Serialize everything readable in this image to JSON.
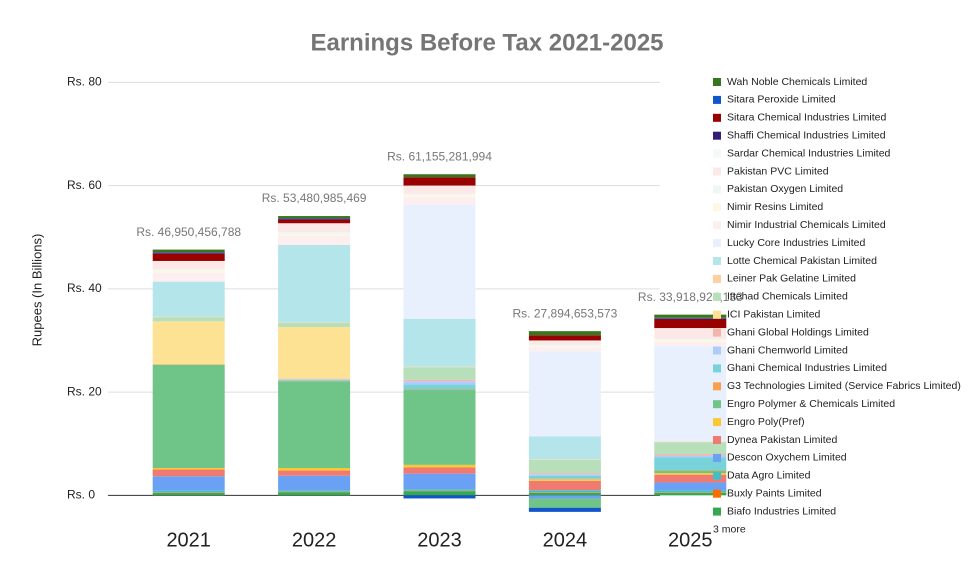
{
  "chart_data": {
    "type": "stacked_bar",
    "title": "Earnings Before Tax 2021-2025",
    "y_label": "Rupees (In Billions)",
    "categories": [
      "2021",
      "2022",
      "2023",
      "2024",
      "2025"
    ],
    "ylim": [
      -4,
      82
    ],
    "yticks": [
      {
        "value": 0,
        "label": "Rs. 0"
      },
      {
        "value": 20,
        "label": "Rs. 20"
      },
      {
        "value": 40,
        "label": "Rs. 40"
      },
      {
        "value": 60,
        "label": "Rs. 60"
      },
      {
        "value": 80,
        "label": "Rs. 80"
      }
    ],
    "grid": true,
    "legend_position": "right",
    "legend_more": "3 more",
    "totals": [
      {
        "value": 46.950456788,
        "label": "Rs.  46,950,456,788"
      },
      {
        "value": 53.480985469,
        "label": "Rs.  53,480,985,469"
      },
      {
        "value": 61.155281994,
        "label": "Rs.  61,155,281,994"
      },
      {
        "value": 27.894653573,
        "label": "Rs.  27,894,653,573"
      },
      {
        "value": 33.918924133,
        "label": "Rs.  33,918,924,133"
      }
    ],
    "series": [
      {
        "name": "Biafo Industries Limited",
        "color": "#34a853",
        "values": [
          0.5,
          0.6,
          0.8,
          0.5,
          0.5
        ]
      },
      {
        "name": "Buxly Paints Limited",
        "color": "#ff6d01",
        "values": [
          0.1,
          0.1,
          0.1,
          0.1,
          0.1
        ]
      },
      {
        "name": "Data Agro Limited",
        "color": "#46bdc6",
        "values": [
          0.3,
          0.3,
          0.3,
          0.4,
          0.4
        ]
      },
      {
        "name": "Descon Oxychem Limited",
        "color": "#6aa1f4",
        "values": [
          2.8,
          2.8,
          3.0,
          -0.6,
          1.5
        ]
      },
      {
        "name": "Dynea Pakistan Limited",
        "color": "#ee7a72",
        "values": [
          1.3,
          1.0,
          1.2,
          1.8,
          1.5
        ]
      },
      {
        "name": "Engro Poly(Pref)",
        "color": "#fbc834",
        "values": [
          0.3,
          0.5,
          0.5,
          0.3,
          0.3
        ]
      },
      {
        "name": "Engro Polymer & Chemicals Limited",
        "color": "#6fc487",
        "values": [
          20,
          16.8,
          14.5,
          -1.8,
          0.5
        ]
      },
      {
        "name": "G3 Technologies Limited  (Service Fabrics Limited)",
        "color": "#f9a04f",
        "values": [
          0.1,
          0.1,
          0.1,
          0.1,
          0.1
        ]
      },
      {
        "name": "Ghani Chemical Industries Limited",
        "color": "#78d2d9",
        "values": [
          0,
          0.2,
          1.0,
          0.6,
          2.5
        ]
      },
      {
        "name": "Ghani Chemworld Limited",
        "color": "#aecbfa",
        "values": [
          0,
          0.1,
          0.6,
          0.3,
          0.3
        ]
      },
      {
        "name": "Ghani Global Holdings Limited",
        "color": "#f4b4ae",
        "values": [
          0,
          0.1,
          0.3,
          0.2,
          0.3
        ]
      },
      {
        "name": "ICI Pakistan Limited",
        "color": "#fde293",
        "values": [
          8.3,
          10,
          0,
          0,
          0
        ]
      },
      {
        "name": "Ittehad Chemicals Limited",
        "color": "#b7dfb9",
        "values": [
          0.8,
          0.8,
          2.4,
          2.6,
          2.3
        ]
      },
      {
        "name": "Leiner Pak Gelatine Limited",
        "color": "#fcd0a1",
        "values": [
          0.1,
          0.1,
          0.1,
          0.1,
          0.1
        ]
      },
      {
        "name": "Lotte Chemical Pakistan Limited",
        "color": "#b3e5ea",
        "values": [
          6.8,
          15,
          9.3,
          4.4,
          0
        ]
      },
      {
        "name": "Lucky Core Industries Limited",
        "color": "#e8f0fe",
        "values": [
          0,
          0,
          22.1,
          16.5,
          18.5
        ]
      },
      {
        "name": "Nimir Industrial Chemicals Limited",
        "color": "#fdeef0",
        "values": [
          1.8,
          1.8,
          1.5,
          0.8,
          0.8
        ]
      },
      {
        "name": "Nimir Resins Limited",
        "color": "#fef8e3",
        "values": [
          0.3,
          0.3,
          0.3,
          0.2,
          0.3
        ]
      },
      {
        "name": "Pakistan Oxygen Limited",
        "color": "#eef8f3",
        "values": [
          0.3,
          0.4,
          0.3,
          0.3,
          0.3
        ]
      },
      {
        "name": "Pakistan PVC Limited",
        "color": "#fce8e6",
        "values": [
          1.5,
          1.6,
          1.5,
          0.7,
          2.0
        ]
      },
      {
        "name": "Sardar Chemical Industries Limited",
        "color": "#f3f8f8",
        "values": [
          0.1,
          0.1,
          0.1,
          0.1,
          0.1
        ]
      },
      {
        "name": "Shaffi Chemical Industries Limited",
        "color": "#351c75",
        "values": [
          0,
          0,
          0,
          0,
          0
        ]
      },
      {
        "name": "Sitara Chemical Industries Limited",
        "color": "#990000",
        "values": [
          1.5,
          0.8,
          1.6,
          1.0,
          1.8
        ]
      },
      {
        "name": "Sitara Peroxide Limited",
        "color": "#1155cc",
        "values": [
          0.2,
          0.2,
          -0.6,
          -0.8,
          0.2
        ]
      },
      {
        "name": "Wah Noble Chemicals Limited",
        "color": "#38761d",
        "values": [
          0.5,
          0.4,
          0.6,
          0.8,
          0.6
        ]
      }
    ]
  }
}
